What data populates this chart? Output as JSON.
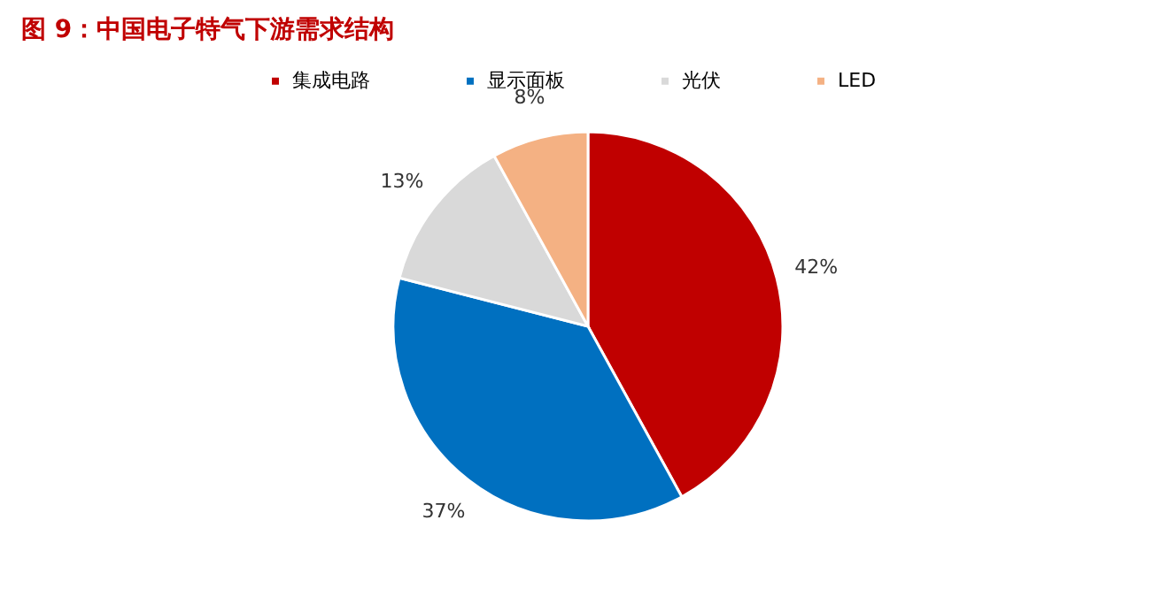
{
  "chart_data": {
    "type": "pie",
    "title": "图 9：中国电子特气下游需求结构",
    "categories": [
      "集成电路",
      "显示面板",
      "光伏",
      "LED"
    ],
    "values": [
      42,
      37,
      13,
      8
    ],
    "value_labels": [
      "42%",
      "37%",
      "13%",
      "8%"
    ],
    "colors": [
      "#c00000",
      "#0070c0",
      "#d9d9d9",
      "#f4b183"
    ],
    "legend": "top"
  }
}
